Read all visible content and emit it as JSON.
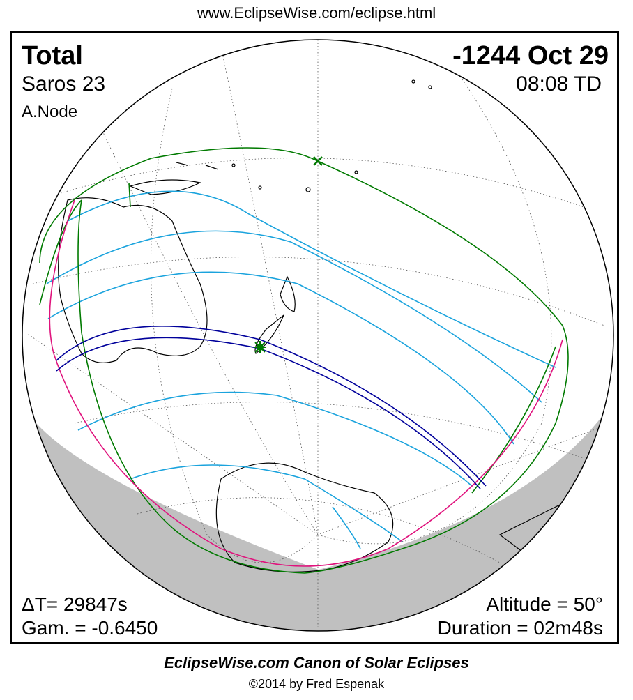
{
  "header": {
    "url": "www.EclipseWise.com/eclipse.html"
  },
  "eclipse": {
    "type": "Total",
    "date": "-1244 Oct 29",
    "saros": "Saros  23",
    "time": "08:08 TD",
    "node": "A.Node",
    "delta_t": "ΔT=  29847s",
    "gamma": "Gam. = -0.6450",
    "altitude": "Altitude = 50°",
    "duration": "Duration = 02m48s"
  },
  "colors": {
    "penumbra_limits": "#007a00",
    "central_path": "#00009b",
    "partial_contours": "#1aa3dd",
    "rise_set": "#e0137d",
    "night_shade": "#c0c0c0",
    "greatest_eclipse_marker": "#007a00"
  },
  "footer": {
    "title": "EclipseWise.com Canon of Solar Eclipses",
    "copyright": "©2014 by Fred Espenak"
  }
}
